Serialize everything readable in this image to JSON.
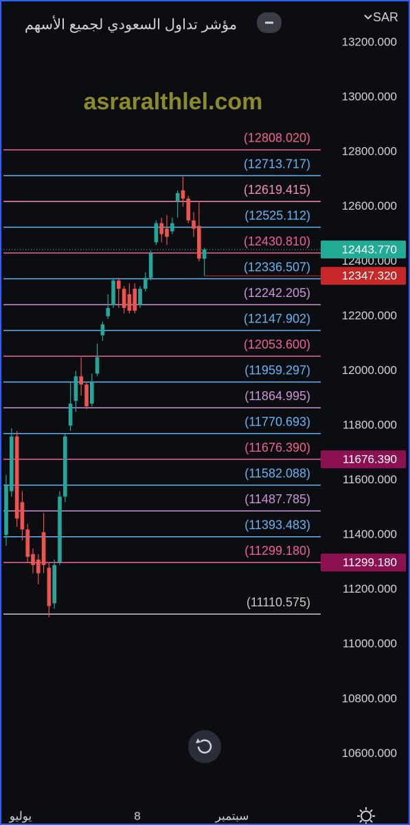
{
  "chart_data": {
    "type": "candlestick",
    "title": "مؤشر تداول السعودي لجميع الأسهم",
    "currency": "SAR",
    "watermark": "asraralthlel.com",
    "x_axis_labels": [
      "يوليو",
      "8",
      "سبتمبر"
    ],
    "ylim": [
      10440,
      13356
    ],
    "yticks": [
      {
        "value": 10600,
        "label": "10600.000"
      },
      {
        "value": 10800,
        "label": "10800.000"
      },
      {
        "value": 11000,
        "label": "11000.000"
      },
      {
        "value": 11200,
        "label": "11200.000"
      },
      {
        "value": 11400,
        "label": "11400.000"
      },
      {
        "value": 11600,
        "label": "11600.000"
      },
      {
        "value": 11800,
        "label": "11800.000"
      },
      {
        "value": 12000,
        "label": "12000.000"
      },
      {
        "value": 12200,
        "label": "12200.000"
      },
      {
        "value": 12400,
        "label": "12400.000"
      },
      {
        "value": 12600,
        "label": "12600.000"
      },
      {
        "value": 12800,
        "label": "12800.000"
      },
      {
        "value": 13000,
        "label": "13000.000"
      },
      {
        "value": 13200,
        "label": "13200.000"
      }
    ],
    "up_color": "#26a69a",
    "down_color": "#ef5350",
    "candles": {
      "open": [
        11400,
        11560,
        11760,
        11520,
        11420,
        11330,
        11310,
        11410,
        11280,
        11150,
        11300,
        11540,
        11800,
        11890,
        11980,
        11950,
        11880,
        11990,
        12130,
        12200,
        12240,
        12330,
        12300,
        12280,
        12300,
        12240,
        12300,
        12340,
        12470,
        12540,
        12520,
        12510,
        12620,
        12660,
        12630,
        12550,
        12530,
        12410
      ],
      "high": [
        11620,
        11790,
        11780,
        11560,
        11440,
        11350,
        11330,
        11480,
        11300,
        11310,
        11560,
        11770,
        11960,
        12000,
        12050,
        11960,
        11990,
        12100,
        12180,
        12280,
        12340,
        12340,
        12310,
        12320,
        12320,
        12310,
        12360,
        12440,
        12550,
        12560,
        12570,
        12560,
        12660,
        12710,
        12640,
        12580,
        12620,
        12450
      ],
      "low": [
        11360,
        11540,
        11430,
        11380,
        11300,
        11260,
        11220,
        11260,
        11100,
        11130,
        11290,
        11520,
        11780,
        11850,
        11910,
        11860,
        11870,
        11980,
        12110,
        12190,
        12230,
        12230,
        12210,
        12210,
        12210,
        12230,
        12290,
        12330,
        12460,
        12470,
        12460,
        12500,
        12560,
        12600,
        12540,
        12490,
        12400,
        12347.32
      ],
      "close": [
        11580,
        11760,
        11460,
        11420,
        11320,
        11290,
        11260,
        11290,
        11140,
        11290,
        11540,
        11760,
        11880,
        11980,
        11950,
        11870,
        11960,
        12050,
        12170,
        12230,
        12330,
        12300,
        12230,
        12220,
        12220,
        12300,
        12340,
        12430,
        12540,
        12500,
        12490,
        12540,
        12650,
        12630,
        12550,
        12520,
        12410,
        12443.77
      ]
    },
    "levels": [
      {
        "value": 12808.02,
        "label": "(12808.020)",
        "color": "#f06292"
      },
      {
        "value": 12713.717,
        "label": "(12713.717)",
        "color": "#64b5f6"
      },
      {
        "value": 12619.415,
        "label": "(12619.415)",
        "color": "#f48fb1"
      },
      {
        "value": 12525.112,
        "label": "(12525.112)",
        "color": "#64b5f6"
      },
      {
        "value": 12430.81,
        "label": "(12430.810)",
        "color": "#f06292"
      },
      {
        "value": 12336.507,
        "label": "(12336.507)",
        "color": "#64b5f6"
      },
      {
        "value": 12242.205,
        "label": "(12242.205)",
        "color": "#ce93d8"
      },
      {
        "value": 12147.902,
        "label": "(12147.902)",
        "color": "#64b5f6"
      },
      {
        "value": 12053.6,
        "label": "(12053.600)",
        "color": "#f06292"
      },
      {
        "value": 11959.297,
        "label": "(11959.297)",
        "color": "#64b5f6"
      },
      {
        "value": 11864.995,
        "label": "(11864.995)",
        "color": "#ce93d8"
      },
      {
        "value": 11770.693,
        "label": "(11770.693)",
        "color": "#64b5f6"
      },
      {
        "value": 11676.39,
        "label": "(11676.390)",
        "color": "#f06292"
      },
      {
        "value": 11582.088,
        "label": "(11582.088)",
        "color": "#64b5f6"
      },
      {
        "value": 11487.785,
        "label": "(11487.785)",
        "color": "#ce93d8"
      },
      {
        "value": 11393.483,
        "label": "(11393.483)",
        "color": "#64b5f6"
      },
      {
        "value": 11299.18,
        "label": "(11299.180)",
        "color": "#f06292"
      },
      {
        "value": 11110.575,
        "label": "(11110.575)",
        "color": "#c8c8c8"
      }
    ],
    "price_labels": [
      {
        "value": 12443.77,
        "label": "12443.770",
        "color": "#22ab94"
      },
      {
        "value": 12347.32,
        "label": "12347.320",
        "color": "#c62828"
      },
      {
        "value": 11676.39,
        "label": "11676.390",
        "color": "#8c1150"
      },
      {
        "value": 11299.18,
        "label": "11299.180",
        "color": "#8c1150"
      }
    ]
  }
}
